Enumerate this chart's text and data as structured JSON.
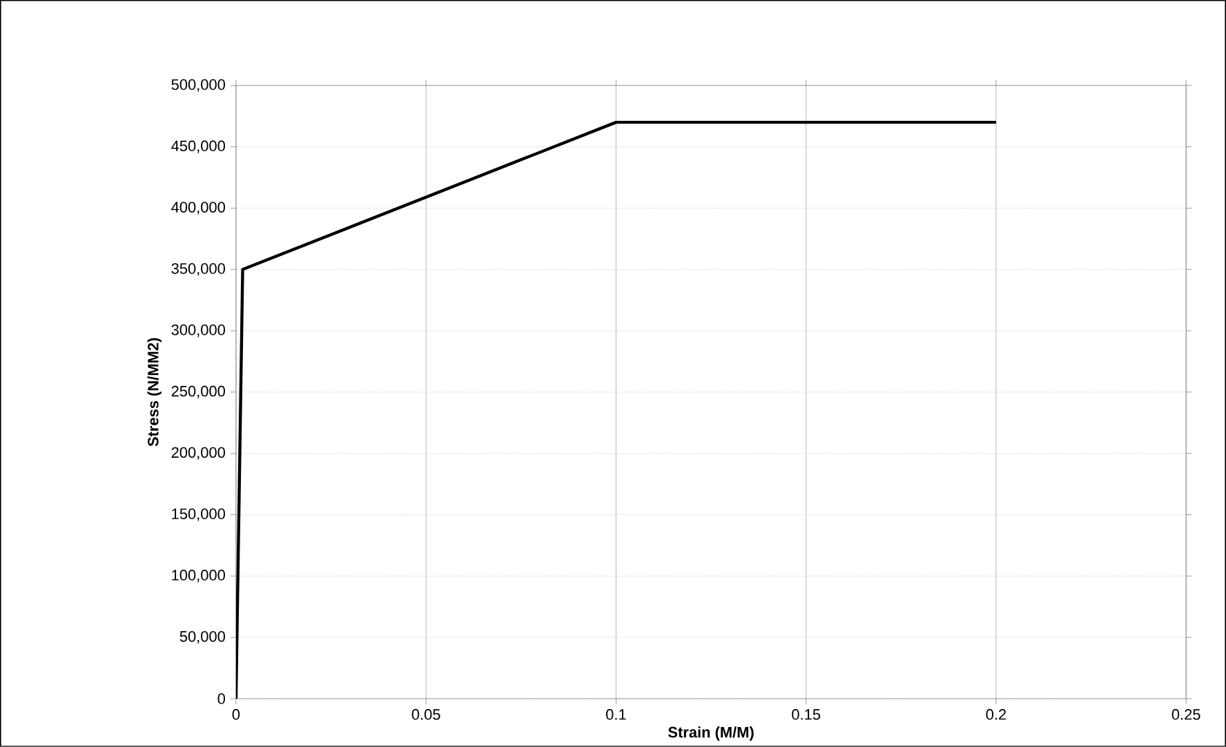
{
  "chart_data": {
    "type": "line",
    "xlabel": "Strain (M/M)",
    "ylabel": "Stress (N/MM2)",
    "series": [
      {
        "color": "#000000",
        "x": [
          0,
          0.00175,
          0.1,
          0.2
        ],
        "values": [
          0,
          350000,
          470000,
          470000
        ]
      }
    ],
    "xlim": [
      0,
      0.25
    ],
    "xticks": [
      0,
      0.05,
      0.1,
      0.15,
      0.2,
      0.25
    ],
    "ylim": [
      0,
      500000
    ],
    "yticks": [
      {
        "value": 0,
        "label": "0"
      },
      {
        "value": 50000,
        "label": "50,000"
      },
      {
        "value": 100000,
        "label": "100,000"
      },
      {
        "value": 150000,
        "label": "150,000"
      },
      {
        "value": 200000,
        "label": "200,000"
      },
      {
        "value": 250000,
        "label": "250,000"
      },
      {
        "value": 300000,
        "label": "300,000"
      },
      {
        "value": 350000,
        "label": "350,000"
      },
      {
        "value": 400000,
        "label": "400,000"
      },
      {
        "value": 450000,
        "label": "450,000"
      },
      {
        "value": 500000,
        "label": "500,000"
      }
    ],
    "grid": true,
    "marker": "none",
    "line_style": "solid"
  }
}
